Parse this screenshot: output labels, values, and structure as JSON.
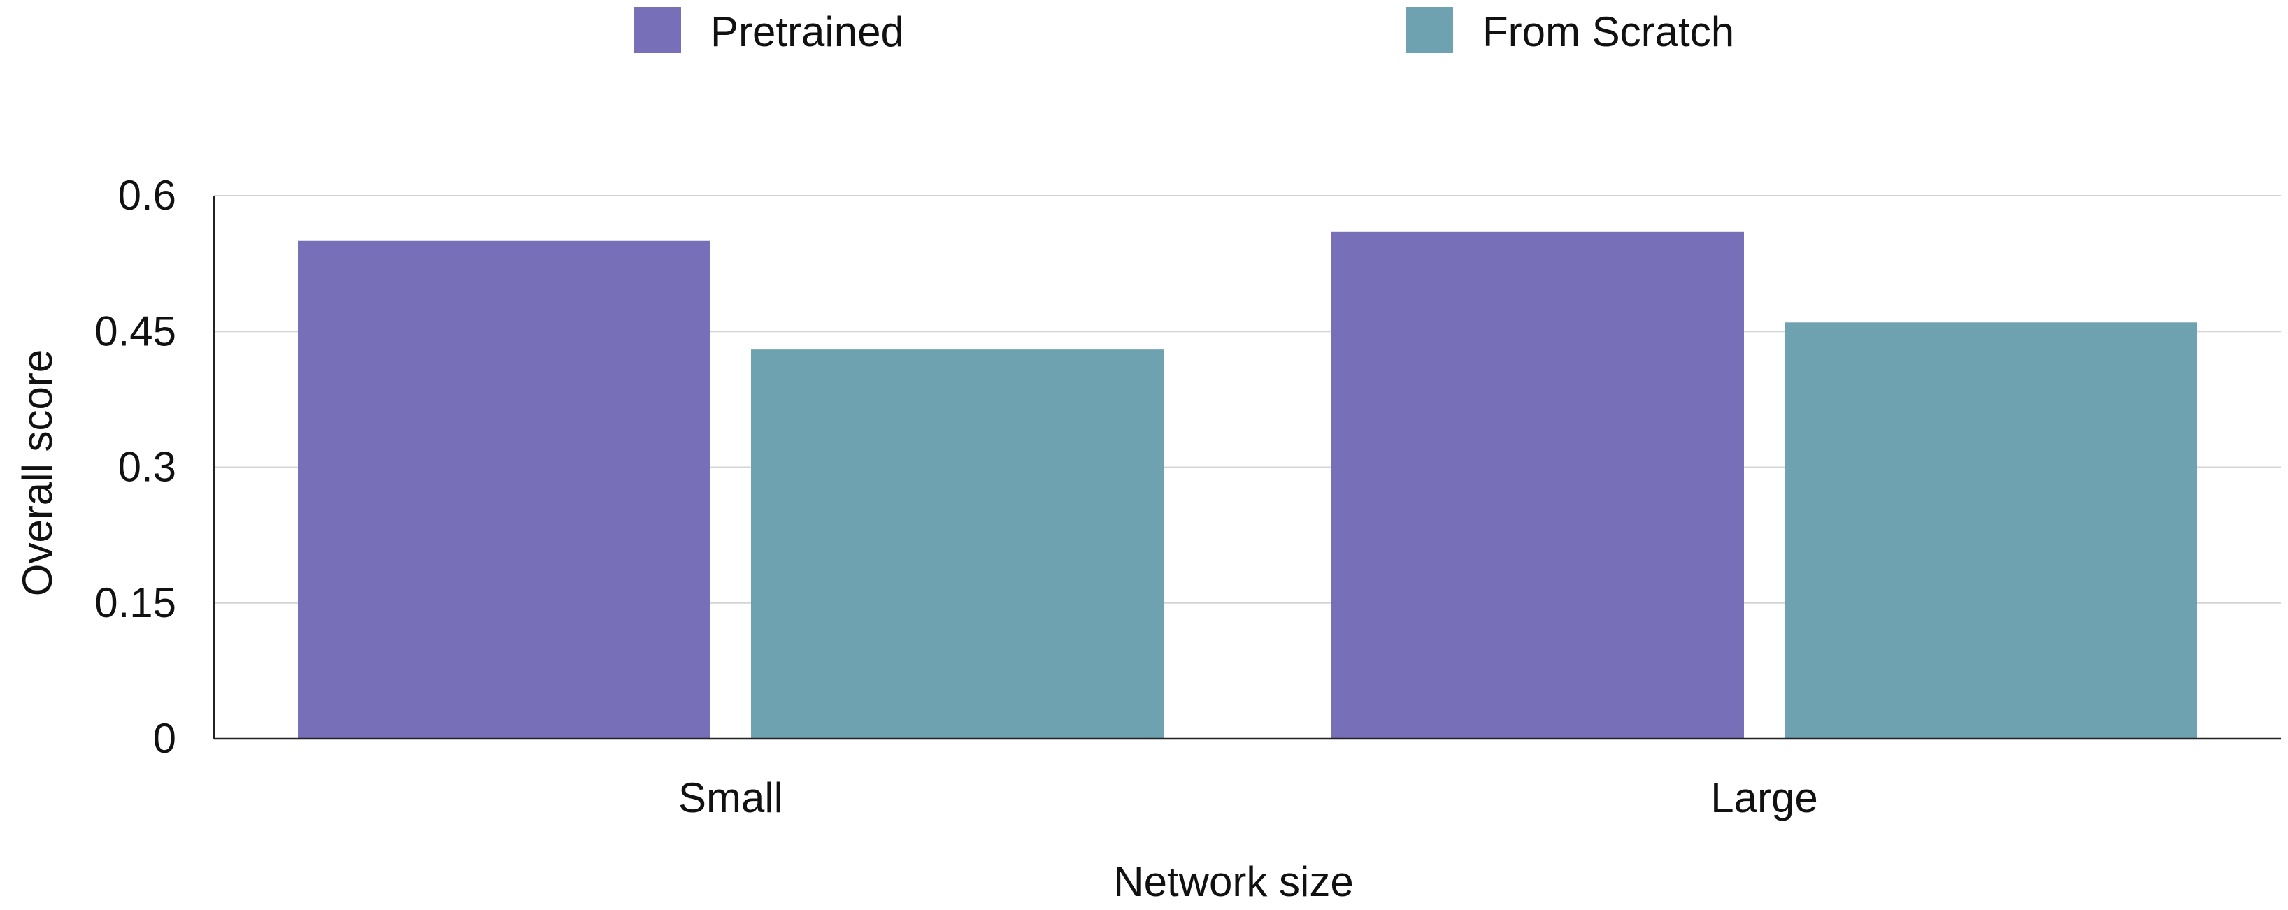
{
  "chart_data": {
    "type": "bar",
    "title": "",
    "xlabel": "Network size",
    "ylabel": "Overall score",
    "categories": [
      "Small",
      "Large"
    ],
    "series": [
      {
        "name": "Pretrained",
        "values": [
          0.55,
          0.56
        ],
        "color": "#7770b8"
      },
      {
        "name": "From Scratch",
        "values": [
          0.43,
          0.46
        ],
        "color": "#6ea2b0"
      }
    ],
    "ylim": [
      0,
      0.6
    ],
    "yticks": [
      0,
      0.15,
      0.3,
      0.45,
      0.6
    ],
    "ytick_labels": [
      "0",
      "0.15",
      "0.3",
      "0.45",
      "0.6"
    ],
    "grid": true,
    "legend_position": "top"
  }
}
